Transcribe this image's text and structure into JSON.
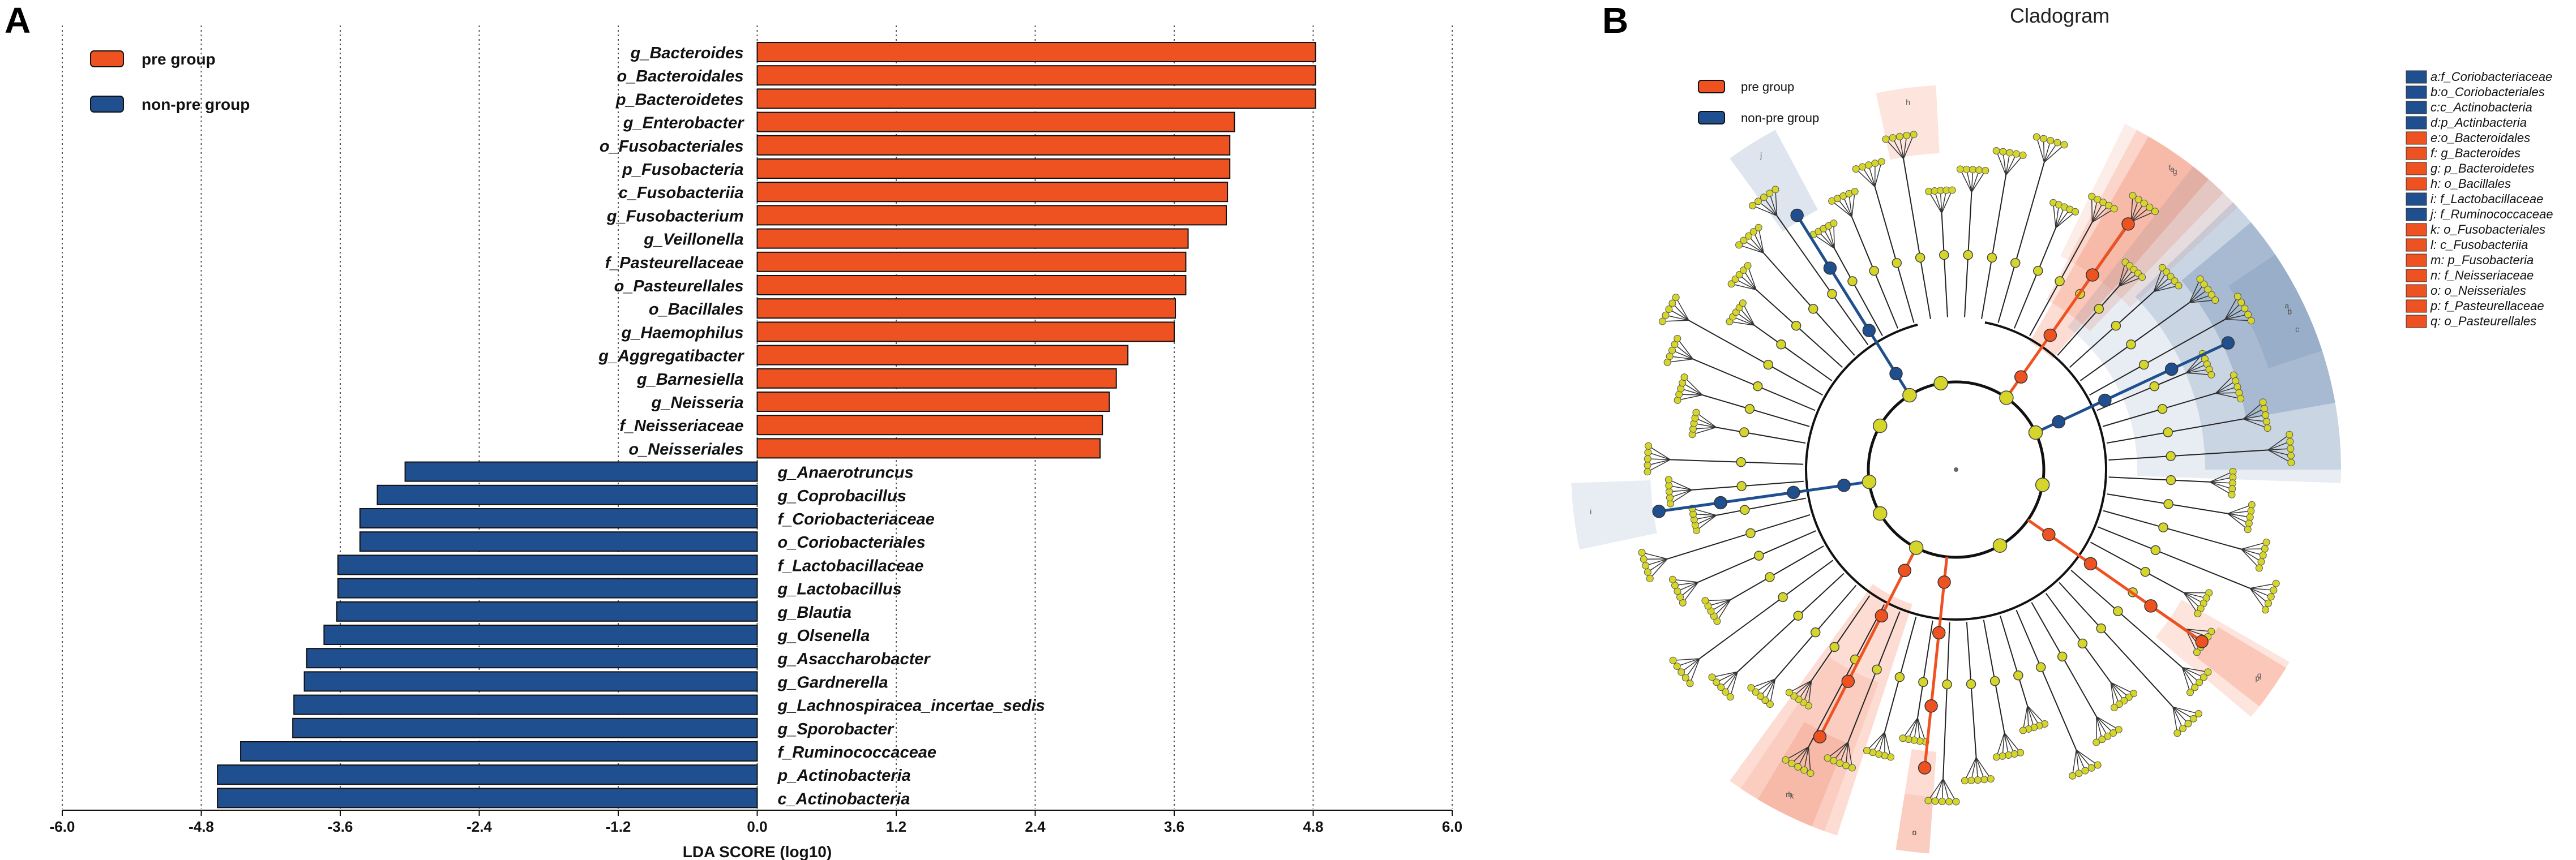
{
  "panel_a": {
    "letter": "A"
  },
  "panel_b": {
    "letter": "B",
    "title": "Cladogram"
  },
  "legend": [
    {
      "label": "pre group",
      "color": "#ef5221"
    },
    {
      "label": "non-pre group",
      "color": "#1f4f8e"
    }
  ],
  "colors": {
    "pre": "#ef5221",
    "non_pre": "#1f4f8e",
    "node": "#d6d62a",
    "pre_shade": "#f7c9b8",
    "non_pre_shade": "#c8d4e6"
  },
  "chart_data": {
    "type": "bar",
    "orientation": "horizontal",
    "xlabel": "LDA SCORE (log10)",
    "xlim": [
      -6.0,
      6.0
    ],
    "xticks": [
      "-6.0",
      "-4.8",
      "-3.6",
      "-2.4",
      "-1.2",
      "0.0",
      "1.2",
      "2.4",
      "3.6",
      "4.8",
      "6.0"
    ],
    "xtick_values": [
      -6.0,
      -4.8,
      -3.6,
      -2.4,
      -1.2,
      0.0,
      1.2,
      2.4,
      3.6,
      4.8,
      6.0
    ],
    "series": [
      {
        "name": "pre group",
        "color": "#ef5221",
        "categories": [
          "g_Bacteroides",
          "o_Bacteroidales",
          "p_Bacteroidetes",
          "g_Enterobacter",
          "o_Fusobacteriales",
          "p_Fusobacteria",
          "c_Fusobacteriia",
          "g_Fusobacterium",
          "g_Veillonella",
          "f_Pasteurellaceae",
          "o_Pasteurellales",
          "o_Bacillales",
          "g_Haemophilus",
          "g_Aggregatibacter",
          "g_Barnesiella",
          "g_Neisseria",
          "f_Neisseriaceae",
          "o_Neisseriales"
        ],
        "values": [
          4.82,
          4.82,
          4.82,
          4.12,
          4.08,
          4.08,
          4.06,
          4.05,
          3.72,
          3.7,
          3.7,
          3.61,
          3.6,
          3.2,
          3.1,
          3.04,
          2.98,
          2.96
        ]
      },
      {
        "name": "non-pre group",
        "color": "#1f4f8e",
        "categories": [
          "g_Anaerotruncus",
          "g_Coprobacillus",
          "f_Coriobacteriaceae",
          "o_Coriobacteriales",
          "f_Lactobacillaceae",
          "g_Lactobacillus",
          "g_Blautia",
          "g_Olsenella",
          "g_Asaccharobacter",
          "g_Gardnerella",
          "g_Lachnospiracea_incertae_sedis",
          "g_Sporobacter",
          "f_Ruminococcaceae",
          "p_Actinobacteria",
          "c_Actinobacteria"
        ],
        "values": [
          -3.04,
          -3.28,
          -3.43,
          -3.43,
          -3.62,
          -3.62,
          -3.63,
          -3.74,
          -3.89,
          -3.91,
          -4.0,
          -4.01,
          -4.46,
          -4.66,
          -4.66
        ]
      }
    ]
  },
  "cladogram_legend": [
    {
      "label": "a:f_Coriobacteriaceae",
      "color": "#1f4f8e"
    },
    {
      "label": "b:o_Coriobacteriales",
      "color": "#1f4f8e"
    },
    {
      "label": "c:c_Actinobacteria",
      "color": "#1f4f8e"
    },
    {
      "label": "d:p_Actinbacteria",
      "color": "#1f4f8e"
    },
    {
      "label": "e:o_Bacteroidales",
      "color": "#ef5221"
    },
    {
      "label": "f: g_Bacteroides",
      "color": "#ef5221"
    },
    {
      "label": "g: p_Bacteroidetes",
      "color": "#ef5221"
    },
    {
      "label": "h: o_Bacillales",
      "color": "#ef5221"
    },
    {
      "label": "i: f_Lactobacillaceae",
      "color": "#1f4f8e"
    },
    {
      "label": "j: f_Ruminococcaceae",
      "color": "#1f4f8e"
    },
    {
      "label": "k: o_Fusobacteriales",
      "color": "#ef5221"
    },
    {
      "label": "l: c_Fusobacteriia",
      "color": "#ef5221"
    },
    {
      "label": "m: p_Fusobacteria",
      "color": "#ef5221"
    },
    {
      "label": "n: f_Neisseriaceae",
      "color": "#ef5221"
    },
    {
      "label": "o: o_Neisseriales",
      "color": "#ef5221"
    },
    {
      "label": "p: f_Pasteurellaceae",
      "color": "#ef5221"
    },
    {
      "label": "q: o_Pasteurellales",
      "color": "#ef5221"
    }
  ],
  "sector_labels": [
    "a",
    "b",
    "c",
    "d",
    "e",
    "f",
    "g",
    "h",
    "i",
    "j",
    "k",
    "l",
    "m",
    "n",
    "o",
    "p",
    "q"
  ]
}
